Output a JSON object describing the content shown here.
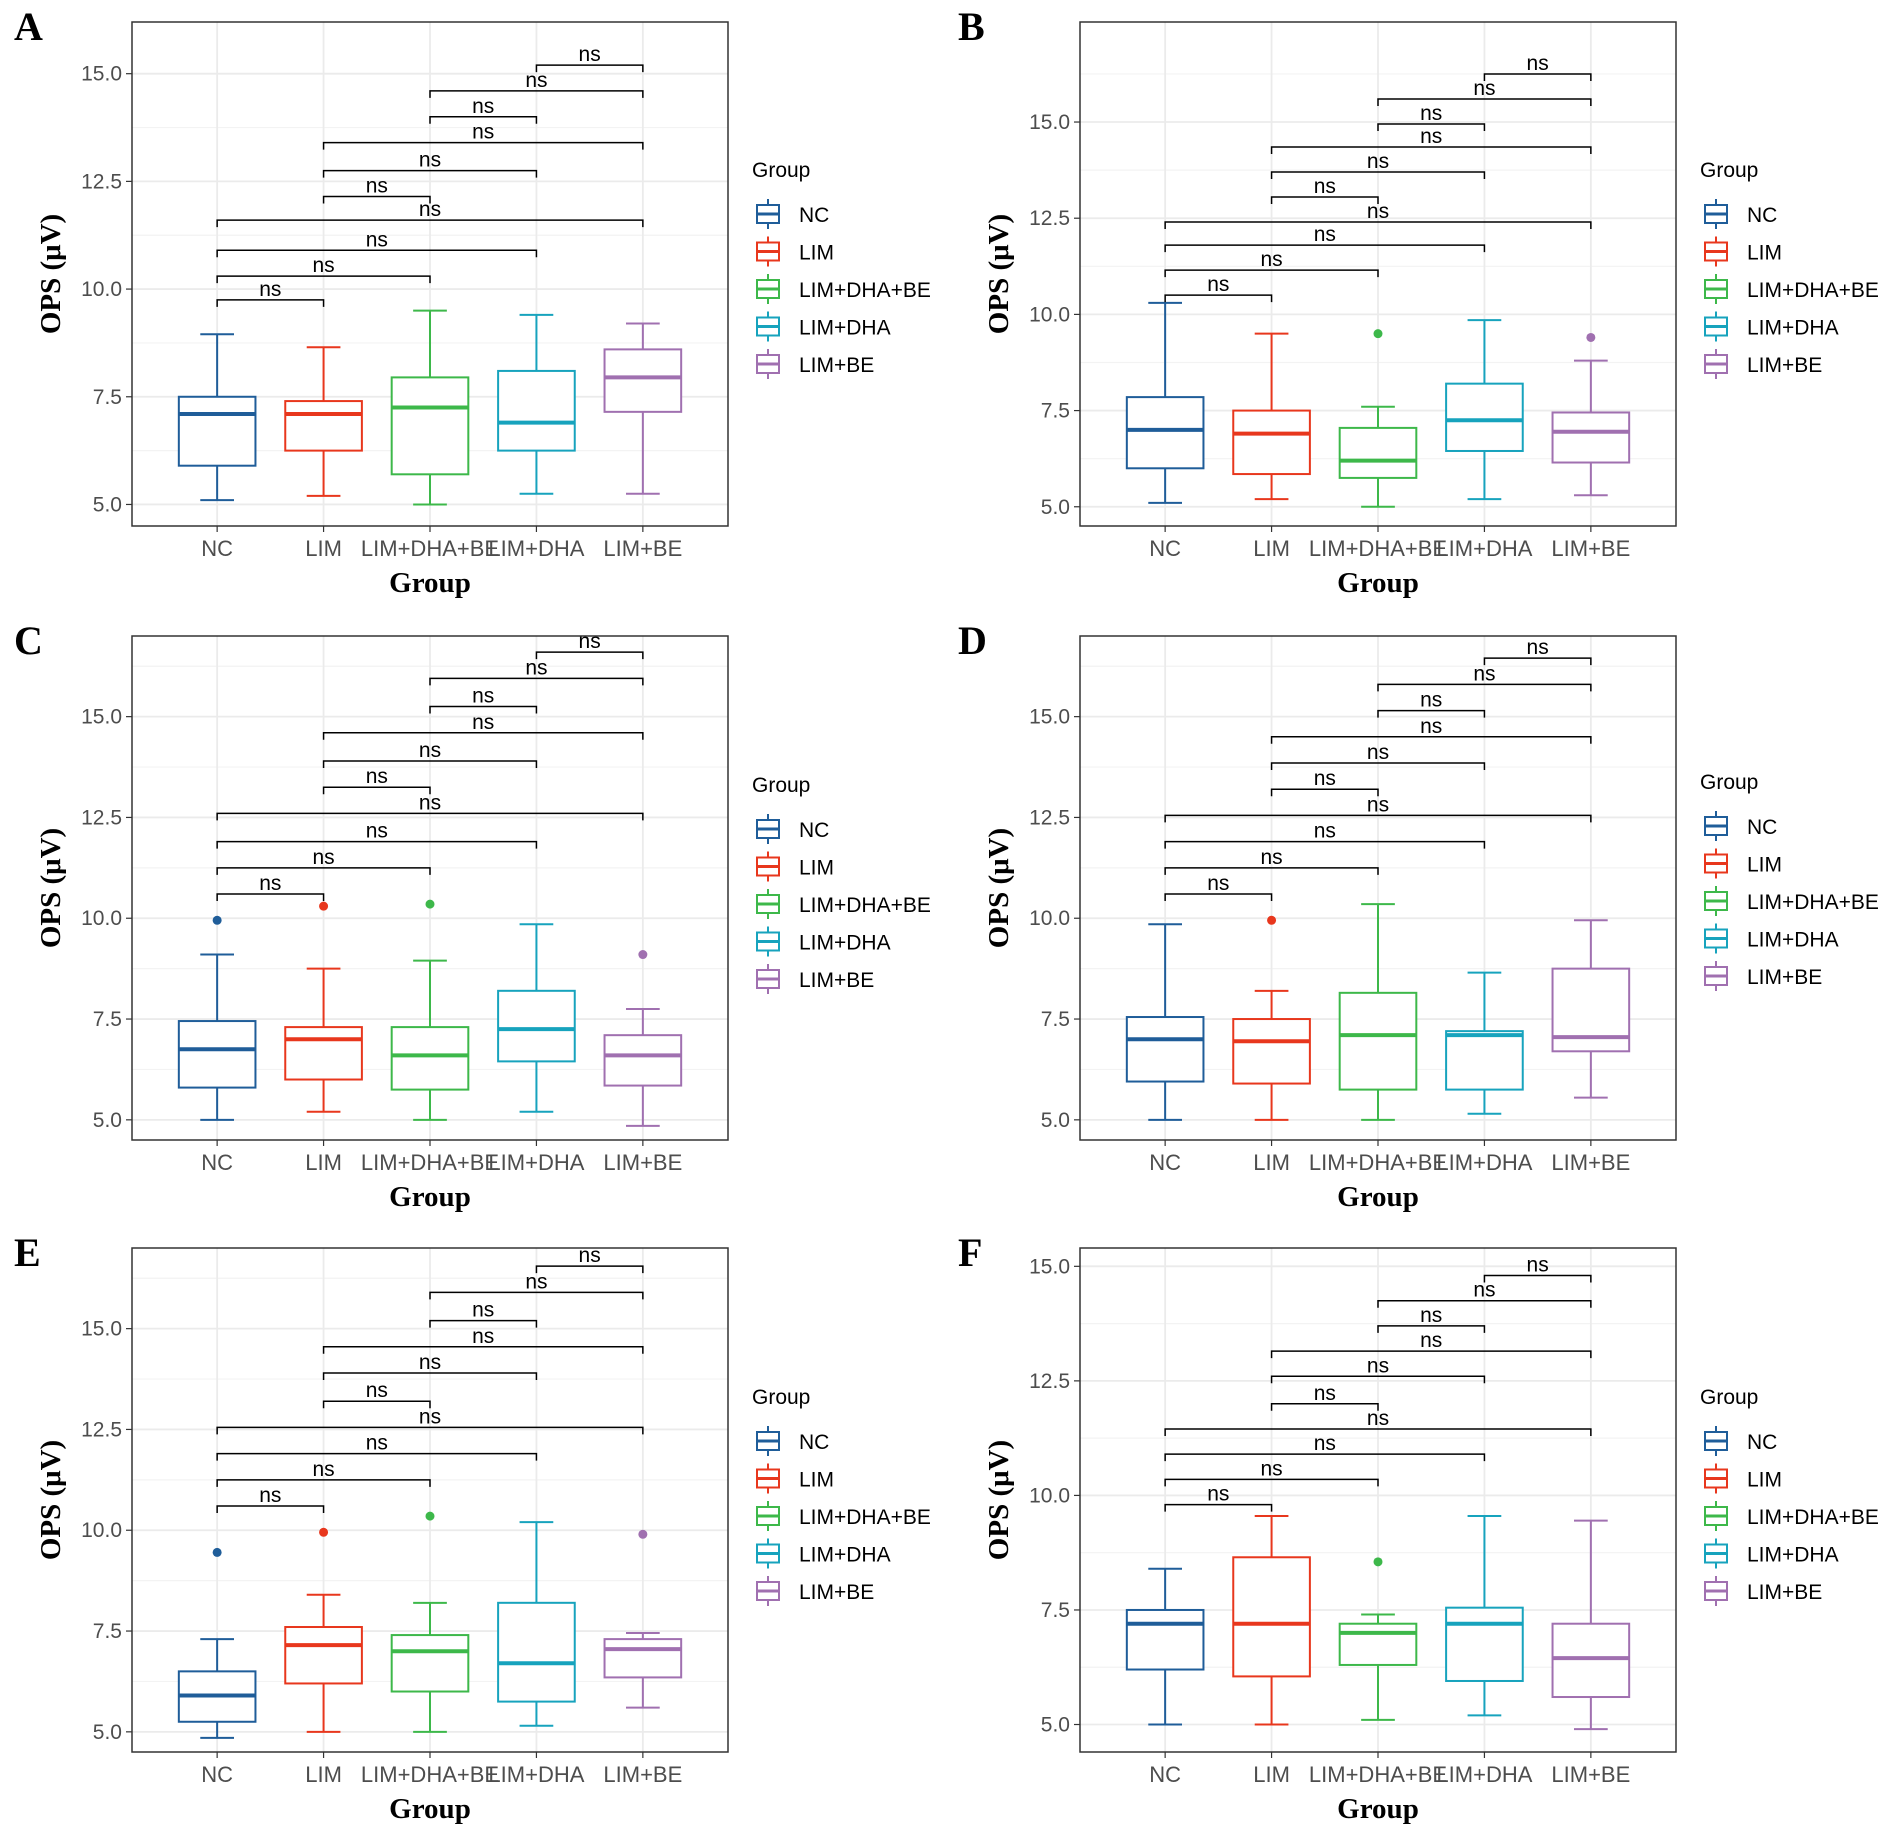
{
  "colors": {
    "NC": "#1f5d99",
    "LIM": "#e8371d",
    "LIM+DHA+BE": "#3db84a",
    "LIM+DHA": "#17a3bd",
    "LIM+BE": "#a070b0",
    "grid": "#ebebeb",
    "frame": "#333333",
    "bracket": "#000000"
  },
  "chart_data": [
    {
      "type": "boxplot",
      "panel": "A",
      "xlabel": "Group",
      "ylabel": "OPS (μV)",
      "ylim": [
        4.5,
        16.2
      ],
      "yticks": [
        5.0,
        7.5,
        10.0,
        12.5,
        15.0
      ],
      "yticklabels": [
        "5.0",
        "7.5",
        "10.0",
        "12.5",
        "15.0"
      ],
      "categories": [
        "NC",
        "LIM",
        "LIM+DHA+BE",
        "LIM+DHA",
        "LIM+BE"
      ],
      "boxes": [
        {
          "q1": 5.9,
          "median": 7.1,
          "q3": 7.5,
          "low": 5.1,
          "high": 8.95,
          "outliers": []
        },
        {
          "q1": 6.25,
          "median": 7.1,
          "q3": 7.4,
          "low": 5.2,
          "high": 8.65,
          "outliers": []
        },
        {
          "q1": 5.7,
          "median": 7.25,
          "q3": 7.95,
          "low": 5.0,
          "high": 9.5,
          "outliers": []
        },
        {
          "q1": 6.25,
          "median": 6.9,
          "q3": 8.1,
          "low": 5.25,
          "high": 9.4,
          "outliers": []
        },
        {
          "q1": 7.15,
          "median": 7.95,
          "q3": 8.6,
          "low": 5.25,
          "high": 9.2,
          "outliers": []
        }
      ],
      "brackets": [
        {
          "from": 1,
          "to": 2,
          "y": 9.75,
          "label": "ns"
        },
        {
          "from": 1,
          "to": 3,
          "y": 10.3,
          "label": "ns"
        },
        {
          "from": 1,
          "to": 4,
          "y": 10.9,
          "label": "ns"
        },
        {
          "from": 1,
          "to": 5,
          "y": 11.6,
          "label": "ns"
        },
        {
          "from": 2,
          "to": 3,
          "y": 12.15,
          "label": "ns"
        },
        {
          "from": 2,
          "to": 4,
          "y": 12.75,
          "label": "ns"
        },
        {
          "from": 2,
          "to": 5,
          "y": 13.4,
          "label": "ns"
        },
        {
          "from": 3,
          "to": 4,
          "y": 14.0,
          "label": "ns"
        },
        {
          "from": 3,
          "to": 5,
          "y": 14.6,
          "label": "ns"
        },
        {
          "from": 4,
          "to": 5,
          "y": 15.2,
          "label": "ns"
        }
      ],
      "legend_title": "Group"
    },
    {
      "type": "boxplot",
      "panel": "B",
      "xlabel": "Group",
      "ylabel": "OPS (μV)",
      "ylim": [
        4.5,
        17.6
      ],
      "yticks": [
        5.0,
        7.5,
        10.0,
        12.5,
        15.0
      ],
      "yticklabels": [
        "5.0",
        "7.5",
        "10.0",
        "12.5",
        "15.0"
      ],
      "categories": [
        "NC",
        "LIM",
        "LIM+DHA+BE",
        "LIM+DHA",
        "LIM+BE"
      ],
      "boxes": [
        {
          "q1": 6.0,
          "median": 7.0,
          "q3": 7.85,
          "low": 5.1,
          "high": 10.3,
          "outliers": []
        },
        {
          "q1": 5.85,
          "median": 6.9,
          "q3": 7.5,
          "low": 5.2,
          "high": 9.5,
          "outliers": []
        },
        {
          "q1": 5.75,
          "median": 6.2,
          "q3": 7.05,
          "low": 5.0,
          "high": 7.6,
          "outliers": [
            9.5
          ]
        },
        {
          "q1": 6.45,
          "median": 7.25,
          "q3": 8.2,
          "low": 5.2,
          "high": 9.85,
          "outliers": []
        },
        {
          "q1": 6.15,
          "median": 6.95,
          "q3": 7.45,
          "low": 5.3,
          "high": 8.8,
          "outliers": [
            9.4
          ]
        }
      ],
      "brackets": [
        {
          "from": 1,
          "to": 2,
          "y": 10.5,
          "label": "ns"
        },
        {
          "from": 1,
          "to": 3,
          "y": 11.15,
          "label": "ns"
        },
        {
          "from": 1,
          "to": 4,
          "y": 11.8,
          "label": "ns"
        },
        {
          "from": 1,
          "to": 5,
          "y": 12.4,
          "label": "ns"
        },
        {
          "from": 2,
          "to": 3,
          "y": 13.05,
          "label": "ns"
        },
        {
          "from": 2,
          "to": 4,
          "y": 13.7,
          "label": "ns"
        },
        {
          "from": 2,
          "to": 5,
          "y": 14.35,
          "label": "ns"
        },
        {
          "from": 3,
          "to": 4,
          "y": 14.95,
          "label": "ns"
        },
        {
          "from": 3,
          "to": 5,
          "y": 15.6,
          "label": "ns"
        },
        {
          "from": 4,
          "to": 5,
          "y": 16.25,
          "label": "ns"
        }
      ],
      "legend_title": "Group"
    },
    {
      "type": "boxplot",
      "panel": "C",
      "xlabel": "Group",
      "ylabel": "OPS (μV)",
      "ylim": [
        4.5,
        17.0
      ],
      "yticks": [
        5.0,
        7.5,
        10.0,
        12.5,
        15.0
      ],
      "yticklabels": [
        "5.0",
        "7.5",
        "10.0",
        "12.5",
        "15.0"
      ],
      "categories": [
        "NC",
        "LIM",
        "LIM+DHA+BE",
        "LIM+DHA",
        "LIM+BE"
      ],
      "boxes": [
        {
          "q1": 5.8,
          "median": 6.75,
          "q3": 7.45,
          "low": 5.0,
          "high": 9.1,
          "outliers": [
            9.95
          ]
        },
        {
          "q1": 6.0,
          "median": 7.0,
          "q3": 7.3,
          "low": 5.2,
          "high": 8.75,
          "outliers": [
            10.3
          ]
        },
        {
          "q1": 5.75,
          "median": 6.6,
          "q3": 7.3,
          "low": 5.0,
          "high": 8.95,
          "outliers": [
            10.35
          ]
        },
        {
          "q1": 6.45,
          "median": 7.25,
          "q3": 8.2,
          "low": 5.2,
          "high": 9.85,
          "outliers": []
        },
        {
          "q1": 5.85,
          "median": 6.6,
          "q3": 7.1,
          "low": 4.85,
          "high": 7.75,
          "outliers": [
            9.1
          ]
        }
      ],
      "brackets": [
        {
          "from": 1,
          "to": 2,
          "y": 10.6,
          "label": "ns"
        },
        {
          "from": 1,
          "to": 3,
          "y": 11.25,
          "label": "ns"
        },
        {
          "from": 1,
          "to": 4,
          "y": 11.9,
          "label": "ns"
        },
        {
          "from": 1,
          "to": 5,
          "y": 12.6,
          "label": "ns"
        },
        {
          "from": 2,
          "to": 3,
          "y": 13.25,
          "label": "ns"
        },
        {
          "from": 2,
          "to": 4,
          "y": 13.9,
          "label": "ns"
        },
        {
          "from": 2,
          "to": 5,
          "y": 14.6,
          "label": "ns"
        },
        {
          "from": 3,
          "to": 4,
          "y": 15.25,
          "label": "ns"
        },
        {
          "from": 3,
          "to": 5,
          "y": 15.95,
          "label": "ns"
        },
        {
          "from": 4,
          "to": 5,
          "y": 16.6,
          "label": "ns"
        }
      ],
      "legend_title": "Group"
    },
    {
      "type": "boxplot",
      "panel": "D",
      "xlabel": "Group",
      "ylabel": "OPS (μV)",
      "ylim": [
        4.5,
        17.0
      ],
      "yticks": [
        5.0,
        7.5,
        10.0,
        12.5,
        15.0
      ],
      "yticklabels": [
        "5.0",
        "7.5",
        "10.0",
        "12.5",
        "15.0"
      ],
      "categories": [
        "NC",
        "LIM",
        "LIM+DHA+BE",
        "LIM+DHA",
        "LIM+BE"
      ],
      "boxes": [
        {
          "q1": 5.95,
          "median": 7.0,
          "q3": 7.55,
          "low": 5.0,
          "high": 9.85,
          "outliers": []
        },
        {
          "q1": 5.9,
          "median": 6.95,
          "q3": 7.5,
          "low": 5.0,
          "high": 8.2,
          "outliers": [
            9.95
          ]
        },
        {
          "q1": 5.75,
          "median": 7.1,
          "q3": 8.15,
          "low": 5.0,
          "high": 10.35,
          "outliers": []
        },
        {
          "q1": 5.75,
          "median": 7.1,
          "q3": 7.2,
          "low": 5.15,
          "high": 8.65,
          "outliers": []
        },
        {
          "q1": 6.7,
          "median": 7.05,
          "q3": 8.75,
          "low": 5.55,
          "high": 9.95,
          "outliers": []
        }
      ],
      "brackets": [
        {
          "from": 1,
          "to": 2,
          "y": 10.6,
          "label": "ns"
        },
        {
          "from": 1,
          "to": 3,
          "y": 11.25,
          "label": "ns"
        },
        {
          "from": 1,
          "to": 4,
          "y": 11.9,
          "label": "ns"
        },
        {
          "from": 1,
          "to": 5,
          "y": 12.55,
          "label": "ns"
        },
        {
          "from": 2,
          "to": 3,
          "y": 13.2,
          "label": "ns"
        },
        {
          "from": 2,
          "to": 4,
          "y": 13.85,
          "label": "ns"
        },
        {
          "from": 2,
          "to": 5,
          "y": 14.5,
          "label": "ns"
        },
        {
          "from": 3,
          "to": 4,
          "y": 15.15,
          "label": "ns"
        },
        {
          "from": 3,
          "to": 5,
          "y": 15.8,
          "label": "ns"
        },
        {
          "from": 4,
          "to": 5,
          "y": 16.45,
          "label": "ns"
        }
      ],
      "legend_title": "Group"
    },
    {
      "type": "boxplot",
      "panel": "E",
      "xlabel": "Group",
      "ylabel": "OPS (μV)",
      "ylim": [
        4.5,
        17.0
      ],
      "yticks": [
        5.0,
        7.5,
        10.0,
        12.5,
        15.0
      ],
      "yticklabels": [
        "5.0",
        "7.5",
        "10.0",
        "12.5",
        "15.0"
      ],
      "categories": [
        "NC",
        "LIM",
        "LIM+DHA+BE",
        "LIM+DHA",
        "LIM+BE"
      ],
      "boxes": [
        {
          "q1": 5.25,
          "median": 5.9,
          "q3": 6.5,
          "low": 4.85,
          "high": 7.3,
          "outliers": [
            9.45
          ]
        },
        {
          "q1": 6.2,
          "median": 7.15,
          "q3": 7.6,
          "low": 5.0,
          "high": 8.4,
          "outliers": [
            9.95
          ]
        },
        {
          "q1": 6.0,
          "median": 7.0,
          "q3": 7.4,
          "low": 5.0,
          "high": 8.2,
          "outliers": [
            10.35
          ]
        },
        {
          "q1": 5.75,
          "median": 6.7,
          "q3": 8.2,
          "low": 5.15,
          "high": 10.2,
          "outliers": []
        },
        {
          "q1": 6.35,
          "median": 7.05,
          "q3": 7.3,
          "low": 5.6,
          "high": 7.45,
          "outliers": [
            9.9
          ]
        }
      ],
      "brackets": [
        {
          "from": 1,
          "to": 2,
          "y": 10.6,
          "label": "ns"
        },
        {
          "from": 1,
          "to": 3,
          "y": 11.25,
          "label": "ns"
        },
        {
          "from": 1,
          "to": 4,
          "y": 11.9,
          "label": "ns"
        },
        {
          "from": 1,
          "to": 5,
          "y": 12.55,
          "label": "ns"
        },
        {
          "from": 2,
          "to": 3,
          "y": 13.2,
          "label": "ns"
        },
        {
          "from": 2,
          "to": 4,
          "y": 13.9,
          "label": "ns"
        },
        {
          "from": 2,
          "to": 5,
          "y": 14.55,
          "label": "ns"
        },
        {
          "from": 3,
          "to": 4,
          "y": 15.2,
          "label": "ns"
        },
        {
          "from": 3,
          "to": 5,
          "y": 15.9,
          "label": "ns"
        },
        {
          "from": 4,
          "to": 5,
          "y": 16.55,
          "label": "ns"
        }
      ],
      "legend_title": "Group"
    },
    {
      "type": "boxplot",
      "panel": "F",
      "xlabel": "Group",
      "ylabel": "OPS (μV)",
      "ylim": [
        4.4,
        15.4
      ],
      "yticks": [
        5.0,
        7.5,
        10.0,
        12.5,
        15.0
      ],
      "yticklabels": [
        "5.0",
        "7.5",
        "10.0",
        "12.5",
        "15.0"
      ],
      "categories": [
        "NC",
        "LIM",
        "LIM+DHA+BE",
        "LIM+DHA",
        "LIM+BE"
      ],
      "boxes": [
        {
          "q1": 6.2,
          "median": 7.2,
          "q3": 7.5,
          "low": 5.0,
          "high": 8.4,
          "outliers": []
        },
        {
          "q1": 6.05,
          "median": 7.2,
          "q3": 8.65,
          "low": 5.0,
          "high": 9.55,
          "outliers": []
        },
        {
          "q1": 6.3,
          "median": 7.0,
          "q3": 7.2,
          "low": 5.1,
          "high": 7.4,
          "outliers": [
            8.55
          ]
        },
        {
          "q1": 5.95,
          "median": 7.2,
          "q3": 7.55,
          "low": 5.2,
          "high": 9.55,
          "outliers": []
        },
        {
          "q1": 5.6,
          "median": 6.45,
          "q3": 7.2,
          "low": 4.9,
          "high": 9.45,
          "outliers": []
        }
      ],
      "brackets": [
        {
          "from": 1,
          "to": 2,
          "y": 9.8,
          "label": "ns"
        },
        {
          "from": 1,
          "to": 3,
          "y": 10.35,
          "label": "ns"
        },
        {
          "from": 1,
          "to": 4,
          "y": 10.9,
          "label": "ns"
        },
        {
          "from": 1,
          "to": 5,
          "y": 11.45,
          "label": "ns"
        },
        {
          "from": 2,
          "to": 3,
          "y": 12.0,
          "label": "ns"
        },
        {
          "from": 2,
          "to": 4,
          "y": 12.6,
          "label": "ns"
        },
        {
          "from": 2,
          "to": 5,
          "y": 13.15,
          "label": "ns"
        },
        {
          "from": 3,
          "to": 4,
          "y": 13.7,
          "label": "ns"
        },
        {
          "from": 3,
          "to": 5,
          "y": 14.25,
          "label": "ns"
        },
        {
          "from": 4,
          "to": 5,
          "y": 14.8,
          "label": "ns"
        }
      ],
      "legend_title": "Group"
    }
  ]
}
